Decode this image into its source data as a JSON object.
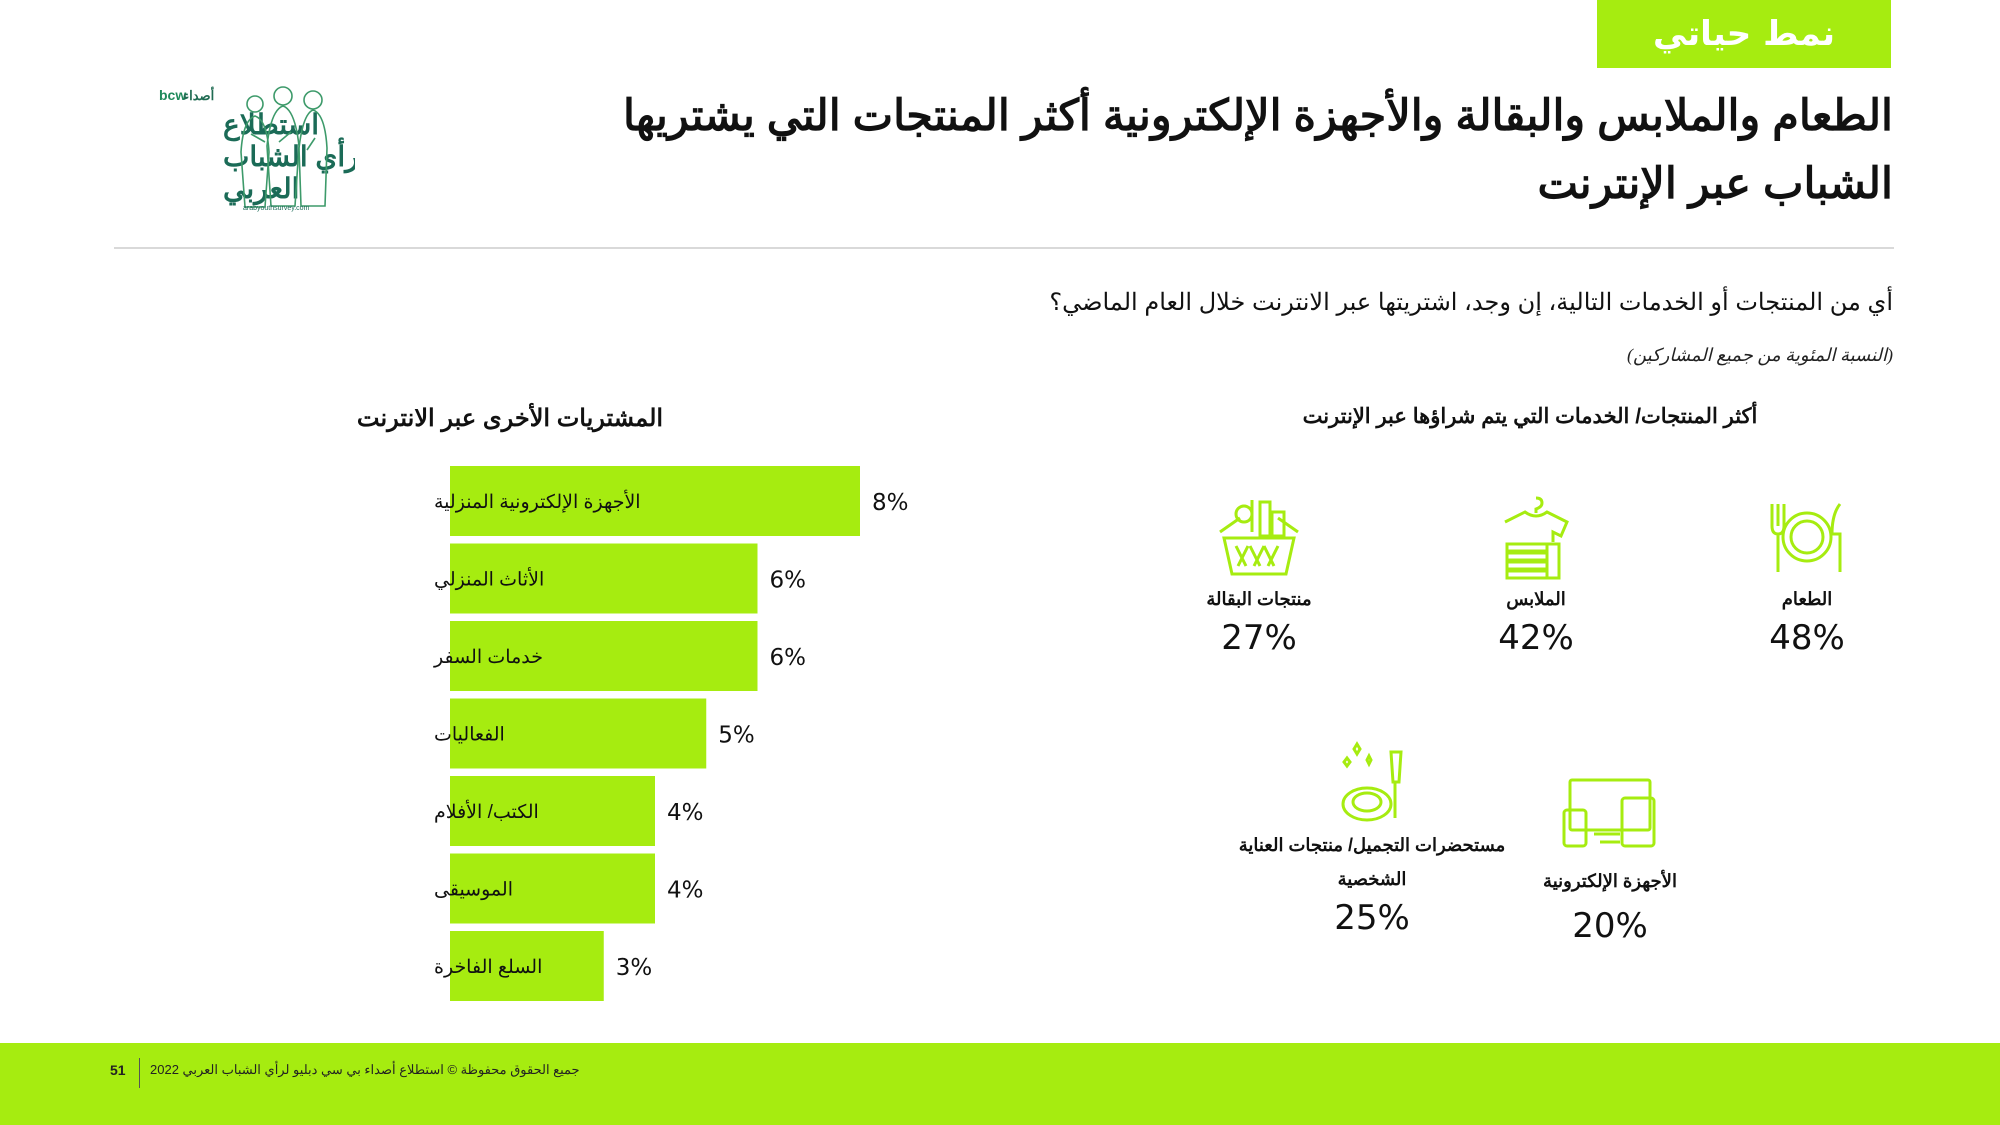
{
  "tag": "نمط حياتي",
  "title": "الطعام والملابس والبقالة والأجهزة الإلكترونية أكثر المنتجات التي يشتريها الشباب عبر الإنترنت",
  "logo": {
    "brand": "bcw",
    "brand_ar": "أصداء",
    "line1": "استطلاع",
    "line2": "رأي الشباب",
    "line3": "العربي",
    "url": "arabyouthsurvey.com"
  },
  "question": "أي من المنتجات أو الخدمات التالية، إن وجد، اشتريتها عبر الانترنت خلال العام الماضي؟",
  "base_note": "(النسبة المئوية من جميع المشاركين)",
  "colors": {
    "accent": "#a6ec10",
    "text": "#111111"
  },
  "top_items": {
    "heading": "أكثر المنتجات/ الخدمات التي يتم شراؤها عبر الإنترنت",
    "items": [
      {
        "label": "الطعام",
        "value": "48%",
        "icon": "fork-plate-knife-icon"
      },
      {
        "label": "الملابس",
        "value": "42%",
        "icon": "clothes-hanger-icon"
      },
      {
        "label": "منتجات البقالة",
        "value": "27%",
        "icon": "grocery-basket-icon"
      },
      {
        "label": "الأجهزة الإلكترونية",
        "value": "20%",
        "icon": "devices-icon"
      },
      {
        "label": "مستحضرات التجميل/ منتجات العناية الشخصية",
        "value": "25%",
        "icon": "cosmetics-icon"
      }
    ]
  },
  "chart_data": {
    "type": "bar",
    "orientation": "horizontal",
    "title": "المشتريات الأخرى عبر الانترنت",
    "categories": [
      "الأجهزة الإلكترونية المنزلية",
      "الأثاث المنزلي",
      "خدمات السفر",
      "الفعاليات",
      "الكتب/ الأفلام",
      "الموسيقى",
      "السلع الفاخرة"
    ],
    "values": [
      8,
      6,
      6,
      5,
      4,
      4,
      3
    ],
    "value_labels": [
      "8%",
      "6%",
      "6%",
      "5%",
      "4%",
      "4%",
      "3%"
    ],
    "unit": "%",
    "xlim": [
      0,
      10
    ],
    "color": "#a6ec10",
    "grid": false
  },
  "footer": {
    "copyright": "جميع الحقوق محفوظة © استطلاع أصداء بي سي دبليو لرأي الشباب العربي 2022",
    "page": "51"
  }
}
